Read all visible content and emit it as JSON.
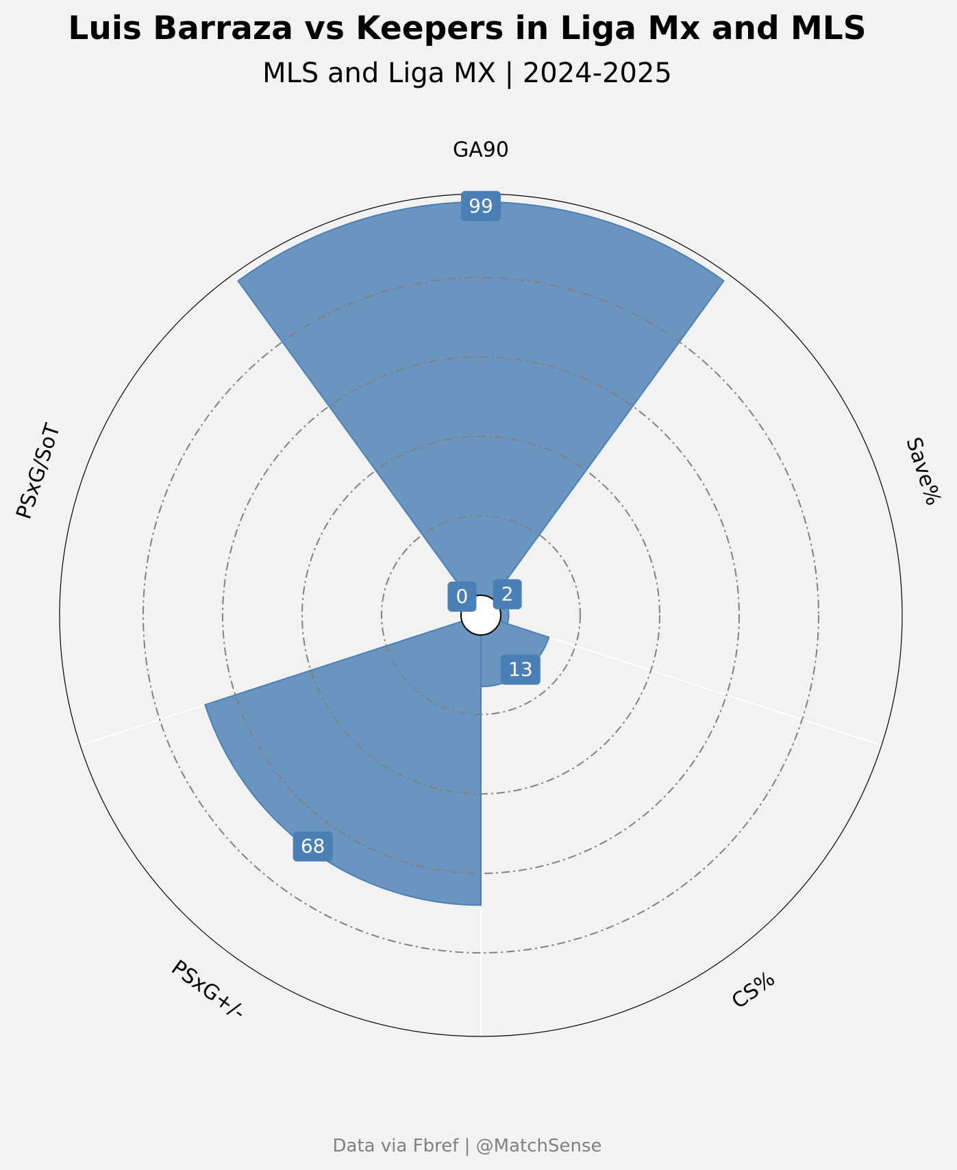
{
  "title": "Luis Barraza vs Keepers in Liga Mx and MLS",
  "subtitle": "MLS and Liga MX | 2024-2025",
  "footer": "Data via Fbref |  @MatchSense",
  "colors": {
    "background": "#f2f2f2",
    "bar_fill": "#4a80b5",
    "label_box": "#4a80b5",
    "gridline": "#808080",
    "spoke": "#ffffff"
  },
  "chart_data": {
    "type": "polar_bar",
    "categories": [
      "GA90",
      "Save%",
      "CS%",
      "PSxG+/-",
      "PSxG/SoT"
    ],
    "values": [
      99,
      2,
      13,
      68,
      0
    ],
    "value_labels": [
      "99",
      "2",
      "13",
      "68",
      "0"
    ],
    "rlim": [
      0,
      100
    ],
    "grid_rings": [
      20,
      40,
      60,
      80
    ],
    "grid": true,
    "legend": "none"
  }
}
